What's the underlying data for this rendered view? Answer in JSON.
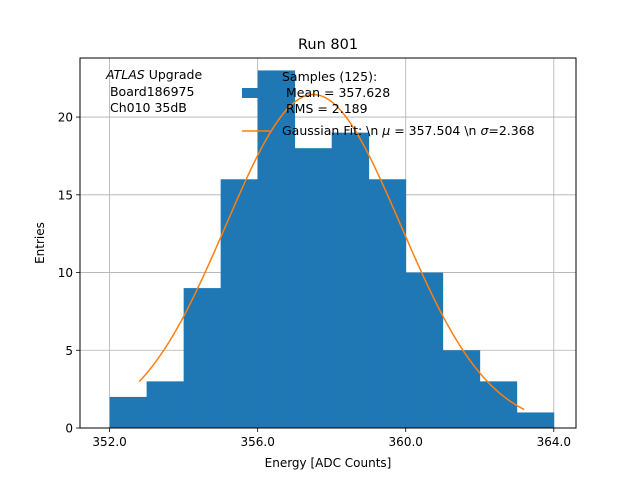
{
  "chart_data": {
    "type": "bar",
    "title": "Run 801",
    "xlabel": "Energy [ADC Counts]",
    "ylabel": "Entries",
    "xlim": [
      351.2,
      364.6
    ],
    "ylim": [
      0,
      23.8
    ],
    "grid": true,
    "x_ticks": [
      352.0,
      356.0,
      360.0,
      364.0
    ],
    "x_tick_labels": [
      "352.0",
      "356.0",
      "360.0",
      "364.0"
    ],
    "y_ticks": [
      0,
      5,
      10,
      15,
      20
    ],
    "y_tick_labels": [
      "0",
      "5",
      "10",
      "15",
      "20"
    ],
    "bin_edges": [
      352.0,
      353.0,
      354.0,
      355.0,
      356.0,
      357.0,
      358.0,
      359.0,
      360.0,
      361.0,
      362.0,
      363.0,
      364.0
    ],
    "values": [
      2,
      3,
      9,
      16,
      23,
      18,
      19,
      16,
      10,
      5,
      3,
      1
    ],
    "bar_color": "#1f77b4",
    "fit": {
      "mu": 357.504,
      "sigma": 2.368,
      "amplitude": 21.45,
      "x_range": [
        352.8,
        363.2
      ],
      "color": "#ff7f0e"
    },
    "legend": {
      "placement": "top-right",
      "samples_line1": "Samples (125):",
      "samples_line2": " Mean = 357.628",
      "samples_line3": " RMS = 2.189",
      "fit_prefix": "Gaussian Fit: \\n ",
      "fit_mu_symbol": "μ",
      "fit_middle": " = 357.504 \\n ",
      "fit_sigma_symbol": "σ",
      "fit_suffix": "=2.368"
    },
    "annotation": {
      "atlas": "ATLAS",
      "upgrade": " Upgrade",
      "board": " Board186975",
      "channel": " Ch010 35dB"
    }
  }
}
